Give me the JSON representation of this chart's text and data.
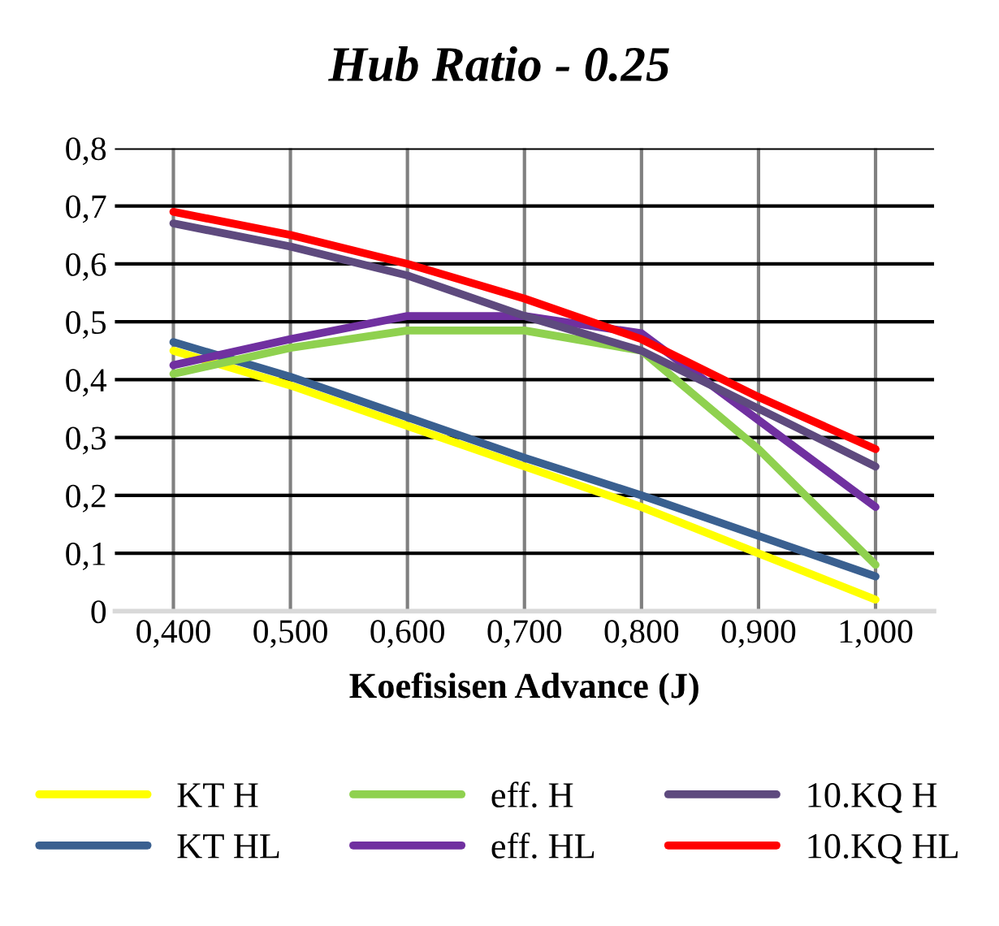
{
  "chart_data": {
    "type": "line",
    "title": "Hub Ratio - 0.25",
    "xlabel": "Koefisisen Advance (J)",
    "categories": [
      "0,400",
      "0,500",
      "0,600",
      "0,700",
      "0,800",
      "0,900",
      "1,000"
    ],
    "series": [
      {
        "name": "KT H",
        "color": "#ffff00",
        "values": [
          0.45,
          0.39,
          0.32,
          0.25,
          0.18,
          0.1,
          0.02
        ]
      },
      {
        "name": "KT HL",
        "color": "#3a6090",
        "values": [
          0.465,
          0.405,
          0.335,
          0.265,
          0.2,
          0.13,
          0.06
        ]
      },
      {
        "name": "eff. H",
        "color": "#8fd14f",
        "values": [
          0.41,
          0.455,
          0.485,
          0.485,
          0.45,
          0.28,
          0.08
        ]
      },
      {
        "name": "eff. HL",
        "color": "#7030a0",
        "values": [
          0.425,
          0.47,
          0.51,
          0.51,
          0.48,
          0.33,
          0.18
        ]
      },
      {
        "name": "10.KQ H",
        "color": "#5e4a7e",
        "values": [
          0.67,
          0.63,
          0.58,
          0.51,
          0.45,
          0.35,
          0.25
        ]
      },
      {
        "name": "10.KQ HL",
        "color": "#ff0000",
        "values": [
          0.69,
          0.65,
          0.6,
          0.54,
          0.47,
          0.37,
          0.28
        ]
      }
    ],
    "ylim": [
      0,
      0.8
    ],
    "yticks": [
      0,
      {
        "value": 0.1,
        "label": "0,1"
      },
      {
        "value": 0.2,
        "label": "0,2"
      },
      {
        "value": 0.3,
        "label": "0,3"
      },
      {
        "value": 0.4,
        "label": "0,4"
      },
      {
        "value": 0.5,
        "label": "0,5"
      },
      {
        "value": 0.6,
        "label": "0,6"
      },
      {
        "value": 0.7,
        "label": "0,7"
      },
      {
        "value": 0.8,
        "label": "0,8"
      }
    ],
    "grid": true,
    "legend": "bottom",
    "marker": "none",
    "line_style": "solid"
  }
}
